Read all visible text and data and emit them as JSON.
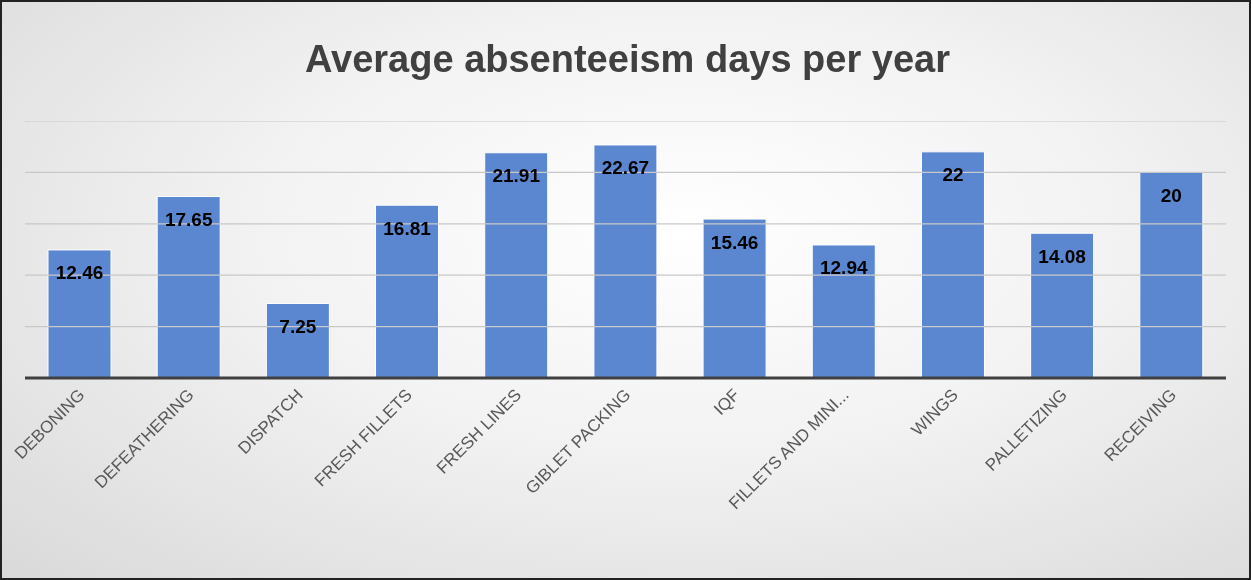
{
  "chart_data": {
    "type": "bar",
    "title": "Average absenteeism days per year",
    "categories": [
      "DEBONING",
      "DEFEATHERING",
      "DISPATCH",
      "FRESH FILLETS",
      "FRESH LINES",
      "GIBLET PACKING",
      "IQF",
      "FILLETS AND MINI...",
      "WINGS",
      "PALLETIZING",
      "RECEIVING"
    ],
    "values": [
      12.46,
      17.65,
      7.25,
      16.81,
      21.91,
      22.67,
      15.46,
      12.94,
      22,
      14.08,
      20
    ],
    "color": "#5b87d0",
    "ylim": [
      0,
      25
    ],
    "yticks": [
      0,
      5,
      10,
      15,
      20,
      25
    ],
    "tick_labels": "x",
    "grid": "y",
    "data_labels": true
  }
}
